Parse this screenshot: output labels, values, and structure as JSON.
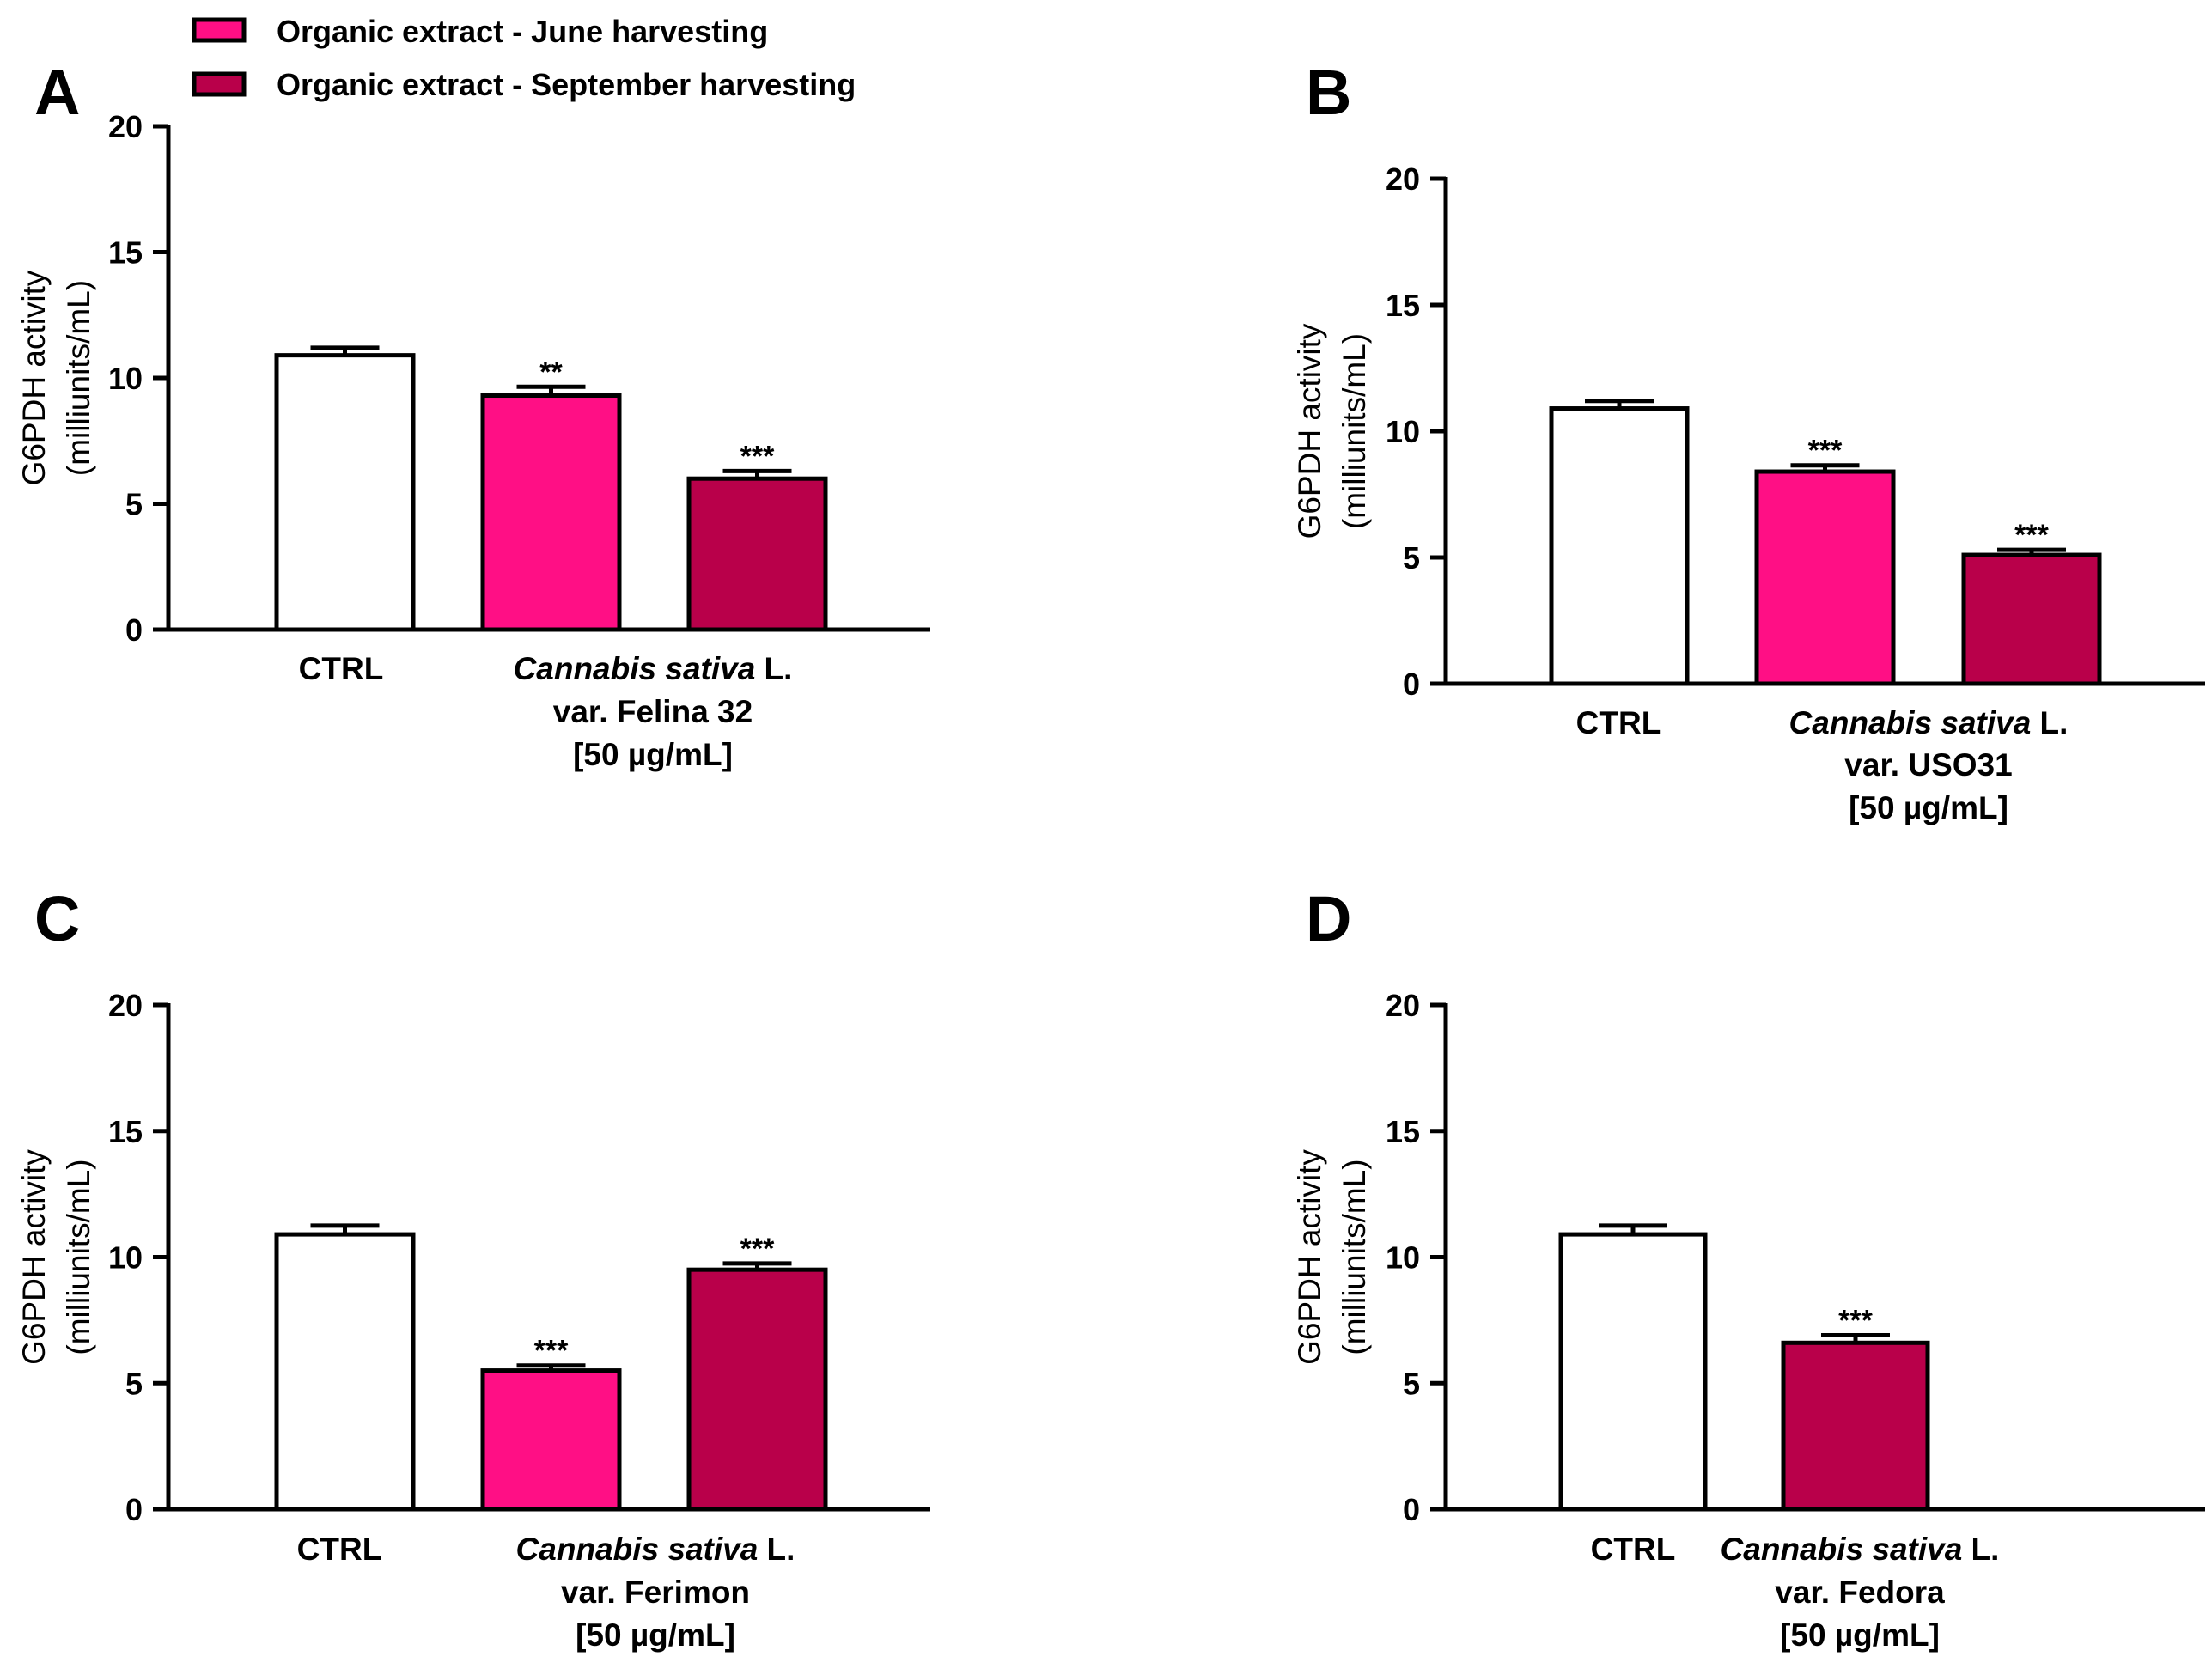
{
  "legend": [
    {
      "label": "Organic extract - June harvesting",
      "color": "#ff0f85"
    },
    {
      "label": "Organic extract - September harvesting",
      "color": "#b9004a"
    }
  ],
  "chart_data": [
    {
      "panel": "A",
      "type": "bar",
      "ylabel_line1": "G6PDH activity",
      "ylabel_line2": "(milliunits/mL)",
      "ylim": [
        0,
        20
      ],
      "yticks": [
        "0",
        "5",
        "10",
        "15",
        "20"
      ],
      "series": [
        {
          "name": "CTRL",
          "value": 10.9,
          "error": 0.3,
          "color": "#ffffff",
          "sig": ""
        },
        {
          "name": "Organic extract - June harvesting",
          "value": 9.3,
          "error": 0.35,
          "color": "#ff0f85",
          "sig": "**"
        },
        {
          "name": "Organic extract - September harvesting",
          "value": 6.0,
          "error": 0.3,
          "color": "#b9004a",
          "sig": "***"
        }
      ],
      "xlabels": {
        "ctrl": "CTRL",
        "species": "Cannabis sativa",
        "authority": " L.",
        "variety": "var. Felina 32",
        "dose": "[50 µg/mL]"
      }
    },
    {
      "panel": "B",
      "type": "bar",
      "ylabel_line1": "G6PDH activity",
      "ylabel_line2": "(milliunits/mL)",
      "ylim": [
        0,
        20
      ],
      "yticks": [
        "0",
        "5",
        "10",
        "15",
        "20"
      ],
      "series": [
        {
          "name": "CTRL",
          "value": 10.9,
          "error": 0.3,
          "color": "#ffffff",
          "sig": ""
        },
        {
          "name": "Organic extract - June harvesting",
          "value": 8.4,
          "error": 0.25,
          "color": "#ff0f85",
          "sig": "***"
        },
        {
          "name": "Organic extract - September harvesting",
          "value": 5.1,
          "error": 0.2,
          "color": "#b9004a",
          "sig": "***"
        }
      ],
      "xlabels": {
        "ctrl": "CTRL",
        "species": "Cannabis sativa",
        "authority": " L.",
        "variety": "var. USO31",
        "dose": "[50 µg/mL]"
      }
    },
    {
      "panel": "C",
      "type": "bar",
      "ylabel_line1": "G6PDH activity",
      "ylabel_line2": "(milliunits/mL)",
      "ylim": [
        0,
        20
      ],
      "yticks": [
        "0",
        "5",
        "10",
        "15",
        "20"
      ],
      "series": [
        {
          "name": "CTRL",
          "value": 10.9,
          "error": 0.35,
          "color": "#ffffff",
          "sig": ""
        },
        {
          "name": "Organic extract - June harvesting",
          "value": 5.5,
          "error": 0.2,
          "color": "#ff0f85",
          "sig": "***"
        },
        {
          "name": "Organic extract - September harvesting",
          "value": 9.5,
          "error": 0.25,
          "color": "#b9004a",
          "sig": "***"
        }
      ],
      "xlabels": {
        "ctrl": "CTRL",
        "species": "Cannabis sativa",
        "authority": " L.",
        "variety": "var. Ferimon",
        "dose": "[50 µg/mL]"
      }
    },
    {
      "panel": "D",
      "type": "bar",
      "ylabel_line1": "G6PDH activity",
      "ylabel_line2": "(milliunits/mL)",
      "ylim": [
        0,
        20
      ],
      "yticks": [
        "0",
        "5",
        "10",
        "15",
        "20"
      ],
      "series": [
        {
          "name": "CTRL",
          "value": 10.9,
          "error": 0.35,
          "color": "#ffffff",
          "sig": ""
        },
        {
          "name": "Organic extract - September harvesting",
          "value": 6.6,
          "error": 0.3,
          "color": "#b9004a",
          "sig": "***"
        }
      ],
      "xlabels": {
        "ctrl": "CTRL",
        "species": "Cannabis sativa",
        "authority": " L.",
        "variety": "var. Fedora",
        "dose": "[50 µg/mL]"
      }
    }
  ]
}
